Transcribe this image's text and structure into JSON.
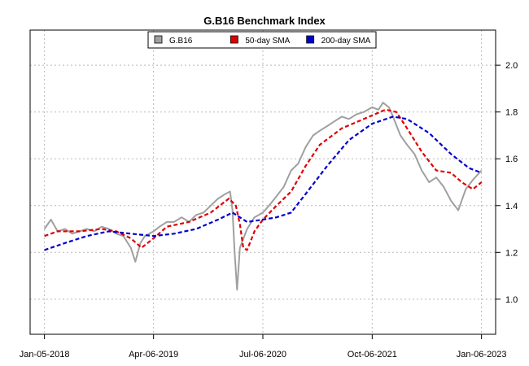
{
  "chart_data": {
    "type": "line",
    "title": "G.B16 Benchmark Index",
    "xlabel": "",
    "ylabel": "",
    "x_ticks": [
      "Jan-05-2018",
      "Apr-06-2019",
      "Jul-06-2020",
      "Oct-06-2021",
      "Jan-06-2023"
    ],
    "x_range": [
      "2017-11-06",
      "2023-03-06"
    ],
    "y_ticks": [
      "1.0",
      "1.2",
      "1.4",
      "1.6",
      "1.8",
      "2.0"
    ],
    "ylim": [
      0.85,
      2.15
    ],
    "y_axis_side": "right",
    "grid": true,
    "legend_position": "top-center",
    "colors": {
      "price": "#a0a0a0",
      "sma50": "#e00000",
      "sma200": "#0000cc"
    },
    "series": [
      {
        "name": "G.B16",
        "style": "solid",
        "points": [
          [
            "2018-01-05",
            1.3
          ],
          [
            "2018-02-01",
            1.34
          ],
          [
            "2018-03-01",
            1.29
          ],
          [
            "2018-04-01",
            1.3
          ],
          [
            "2018-05-01",
            1.28
          ],
          [
            "2018-06-01",
            1.29
          ],
          [
            "2018-07-01",
            1.3
          ],
          [
            "2018-08-01",
            1.29
          ],
          [
            "2018-09-01",
            1.31
          ],
          [
            "2018-10-01",
            1.3
          ],
          [
            "2018-11-01",
            1.28
          ],
          [
            "2018-12-01",
            1.27
          ],
          [
            "2019-01-01",
            1.22
          ],
          [
            "2019-01-20",
            1.16
          ],
          [
            "2019-02-10",
            1.24
          ],
          [
            "2019-03-01",
            1.27
          ],
          [
            "2019-04-06",
            1.29
          ],
          [
            "2019-05-01",
            1.31
          ],
          [
            "2019-06-01",
            1.33
          ],
          [
            "2019-07-01",
            1.33
          ],
          [
            "2019-08-01",
            1.35
          ],
          [
            "2019-09-01",
            1.33
          ],
          [
            "2019-10-01",
            1.36
          ],
          [
            "2019-11-01",
            1.37
          ],
          [
            "2019-12-01",
            1.4
          ],
          [
            "2020-01-01",
            1.43
          ],
          [
            "2020-02-01",
            1.45
          ],
          [
            "2020-02-20",
            1.46
          ],
          [
            "2020-03-01",
            1.38
          ],
          [
            "2020-03-10",
            1.2
          ],
          [
            "2020-03-20",
            1.04
          ],
          [
            "2020-04-01",
            1.22
          ],
          [
            "2020-05-01",
            1.3
          ],
          [
            "2020-06-01",
            1.35
          ],
          [
            "2020-07-06",
            1.37
          ],
          [
            "2020-08-01",
            1.4
          ],
          [
            "2020-09-01",
            1.44
          ],
          [
            "2020-10-01",
            1.48
          ],
          [
            "2020-11-01",
            1.55
          ],
          [
            "2020-12-01",
            1.58
          ],
          [
            "2021-01-01",
            1.65
          ],
          [
            "2021-02-01",
            1.7
          ],
          [
            "2021-03-01",
            1.72
          ],
          [
            "2021-04-01",
            1.74
          ],
          [
            "2021-05-01",
            1.76
          ],
          [
            "2021-06-01",
            1.78
          ],
          [
            "2021-07-01",
            1.77
          ],
          [
            "2021-08-01",
            1.79
          ],
          [
            "2021-09-01",
            1.8
          ],
          [
            "2021-10-06",
            1.82
          ],
          [
            "2021-11-01",
            1.81
          ],
          [
            "2021-11-20",
            1.84
          ],
          [
            "2021-12-15",
            1.82
          ],
          [
            "2022-01-01",
            1.78
          ],
          [
            "2022-02-01",
            1.7
          ],
          [
            "2022-03-01",
            1.66
          ],
          [
            "2022-04-01",
            1.62
          ],
          [
            "2022-05-01",
            1.55
          ],
          [
            "2022-06-01",
            1.5
          ],
          [
            "2022-07-01",
            1.52
          ],
          [
            "2022-08-01",
            1.48
          ],
          [
            "2022-09-01",
            1.42
          ],
          [
            "2022-10-01",
            1.38
          ],
          [
            "2022-11-01",
            1.47
          ],
          [
            "2022-12-01",
            1.51
          ],
          [
            "2023-01-06",
            1.55
          ]
        ]
      },
      {
        "name": "50-day SMA",
        "style": "dashed",
        "points": [
          [
            "2018-01-05",
            1.27
          ],
          [
            "2018-03-01",
            1.29
          ],
          [
            "2018-06-01",
            1.29
          ],
          [
            "2018-09-01",
            1.3
          ],
          [
            "2018-11-01",
            1.29
          ],
          [
            "2019-01-01",
            1.26
          ],
          [
            "2019-02-15",
            1.22
          ],
          [
            "2019-04-06",
            1.26
          ],
          [
            "2019-06-01",
            1.31
          ],
          [
            "2019-09-01",
            1.33
          ],
          [
            "2019-12-01",
            1.37
          ],
          [
            "2020-02-15",
            1.43
          ],
          [
            "2020-03-15",
            1.4
          ],
          [
            "2020-04-01",
            1.32
          ],
          [
            "2020-04-15",
            1.22
          ],
          [
            "2020-05-01",
            1.21
          ],
          [
            "2020-06-01",
            1.29
          ],
          [
            "2020-07-06",
            1.34
          ],
          [
            "2020-09-01",
            1.4
          ],
          [
            "2020-11-01",
            1.46
          ],
          [
            "2021-01-01",
            1.57
          ],
          [
            "2021-03-01",
            1.66
          ],
          [
            "2021-06-01",
            1.73
          ],
          [
            "2021-09-01",
            1.77
          ],
          [
            "2021-12-01",
            1.81
          ],
          [
            "2022-01-15",
            1.8
          ],
          [
            "2022-03-01",
            1.73
          ],
          [
            "2022-05-01",
            1.63
          ],
          [
            "2022-07-01",
            1.55
          ],
          [
            "2022-09-01",
            1.54
          ],
          [
            "2022-10-15",
            1.5
          ],
          [
            "2022-12-01",
            1.47
          ],
          [
            "2023-01-06",
            1.5
          ]
        ]
      },
      {
        "name": "200-day SMA",
        "style": "dashed",
        "points": [
          [
            "2018-01-05",
            1.21
          ],
          [
            "2018-04-01",
            1.24
          ],
          [
            "2018-07-01",
            1.27
          ],
          [
            "2018-10-01",
            1.29
          ],
          [
            "2019-01-01",
            1.28
          ],
          [
            "2019-04-06",
            1.27
          ],
          [
            "2019-07-01",
            1.28
          ],
          [
            "2019-10-01",
            1.3
          ],
          [
            "2020-01-01",
            1.34
          ],
          [
            "2020-03-01",
            1.37
          ],
          [
            "2020-05-01",
            1.33
          ],
          [
            "2020-07-06",
            1.34
          ],
          [
            "2020-09-01",
            1.35
          ],
          [
            "2020-11-01",
            1.37
          ],
          [
            "2021-01-01",
            1.45
          ],
          [
            "2021-04-01",
            1.57
          ],
          [
            "2021-07-01",
            1.68
          ],
          [
            "2021-10-06",
            1.75
          ],
          [
            "2022-01-01",
            1.78
          ],
          [
            "2022-03-01",
            1.77
          ],
          [
            "2022-06-01",
            1.71
          ],
          [
            "2022-09-01",
            1.62
          ],
          [
            "2022-11-15",
            1.56
          ],
          [
            "2023-01-06",
            1.54
          ]
        ]
      }
    ]
  }
}
